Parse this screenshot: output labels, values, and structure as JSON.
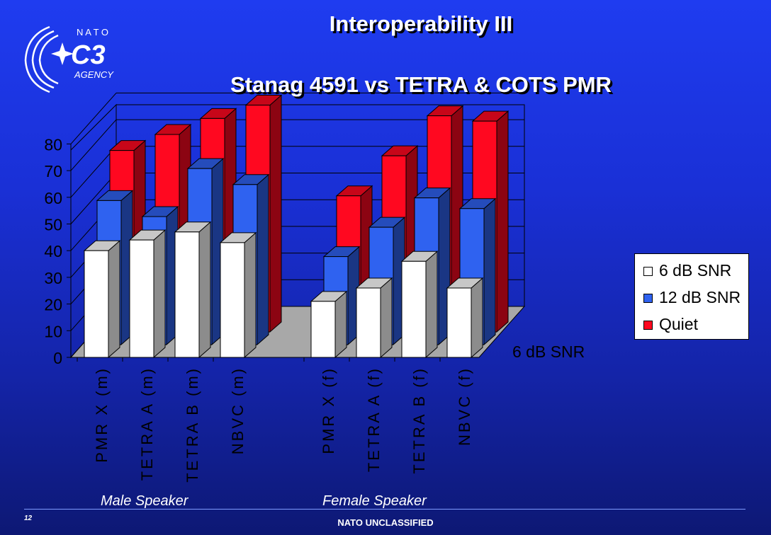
{
  "slide": {
    "title": "Interoperability III",
    "subtitle": "Stanag 4591  vs  TETRA & COTS PMR",
    "page_number": "12",
    "classification": "NATO UNCLASSIFIED",
    "logo": {
      "top_text": "N A T O",
      "main_text": "C3",
      "bottom_text": "AGENCY"
    },
    "group_labels": [
      "Male Speaker",
      "Female Speaker"
    ]
  },
  "chart_data": {
    "type": "bar",
    "subtype": "3d-clustered",
    "categories": [
      "PMR X (m)",
      "TETRA A (m)",
      "TETRA B (m)",
      "NBVC (m)",
      "PMR X (f)",
      "TETRA A (f)",
      "TETRA B (f)",
      "NBVC (f)"
    ],
    "series": [
      {
        "name": "6 dB SNR",
        "color": "#ffffff",
        "values": [
          40,
          44,
          47,
          43,
          21,
          26,
          36,
          26
        ]
      },
      {
        "name": "12 dB SNR",
        "color": "#2f62f0",
        "values": [
          54,
          48,
          66,
          60,
          33,
          44,
          55,
          51
        ]
      },
      {
        "name": "Quiet",
        "color": "#ff0820",
        "values": [
          68,
          74,
          80,
          85,
          51,
          66,
          81,
          79
        ]
      }
    ],
    "depth_axis_label": "6 dB SNR",
    "ylim": [
      0,
      80
    ],
    "yticks": [
      0,
      10,
      20,
      30,
      40,
      50,
      60,
      70,
      80
    ],
    "grid": true,
    "legend_position": "right"
  }
}
